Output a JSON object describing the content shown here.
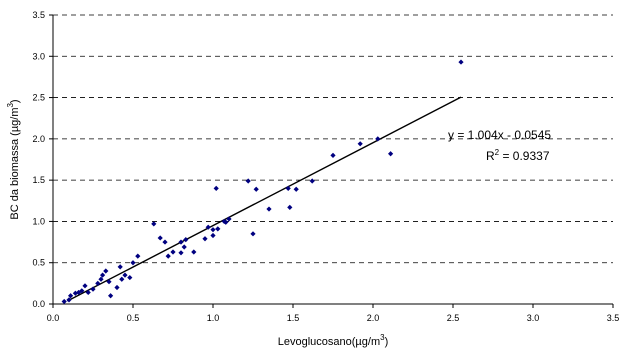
{
  "chart_data": {
    "type": "scatter",
    "xlabel": "Levoglucosano(µg/m",
    "xlabel_sup": "3",
    "xlabel_end": ")",
    "ylabel": "BC da biomassa (µg/m",
    "ylabel_sup": "3",
    "ylabel_end": ")",
    "xlim": [
      0,
      3.5
    ],
    "ylim": [
      0,
      3.5
    ],
    "x_ticks": [
      "0.0",
      "0.5",
      "1.0",
      "1.5",
      "2.0",
      "2.5",
      "3.0",
      "3.5"
    ],
    "y_ticks": [
      "0.0",
      "0.5",
      "1.0",
      "1.5",
      "2.0",
      "2.5",
      "3.0",
      "3.5"
    ],
    "grid": "horizontal-dashed",
    "marker_color": "#000080",
    "series": [
      {
        "points": [
          [
            0.07,
            0.03
          ],
          [
            0.1,
            0.05
          ],
          [
            0.11,
            0.1
          ],
          [
            0.14,
            0.13
          ],
          [
            0.16,
            0.14
          ],
          [
            0.18,
            0.16
          ],
          [
            0.2,
            0.22
          ],
          [
            0.22,
            0.14
          ],
          [
            0.25,
            0.18
          ],
          [
            0.28,
            0.25
          ],
          [
            0.3,
            0.3
          ],
          [
            0.31,
            0.35
          ],
          [
            0.33,
            0.4
          ],
          [
            0.35,
            0.27
          ],
          [
            0.36,
            0.1
          ],
          [
            0.4,
            0.2
          ],
          [
            0.42,
            0.45
          ],
          [
            0.43,
            0.3
          ],
          [
            0.45,
            0.35
          ],
          [
            0.48,
            0.32
          ],
          [
            0.5,
            0.5
          ],
          [
            0.53,
            0.58
          ],
          [
            0.63,
            0.97
          ],
          [
            0.67,
            0.8
          ],
          [
            0.7,
            0.75
          ],
          [
            0.72,
            0.58
          ],
          [
            0.75,
            0.63
          ],
          [
            0.8,
            0.62
          ],
          [
            0.8,
            0.75
          ],
          [
            0.82,
            0.69
          ],
          [
            0.83,
            0.78
          ],
          [
            0.88,
            0.63
          ],
          [
            0.95,
            0.79
          ],
          [
            0.97,
            0.93
          ],
          [
            1.0,
            0.83
          ],
          [
            1.0,
            0.9
          ],
          [
            1.02,
            1.4
          ],
          [
            1.03,
            0.91
          ],
          [
            1.07,
            1.0
          ],
          [
            1.08,
            0.99
          ],
          [
            1.1,
            1.03
          ],
          [
            1.22,
            1.49
          ],
          [
            1.25,
            0.85
          ],
          [
            1.27,
            1.39
          ],
          [
            1.35,
            1.15
          ],
          [
            1.47,
            1.4
          ],
          [
            1.48,
            1.17
          ],
          [
            1.52,
            1.39
          ],
          [
            1.62,
            1.49
          ],
          [
            1.75,
            1.8
          ],
          [
            1.92,
            1.94
          ],
          [
            2.03,
            2.0
          ],
          [
            2.11,
            1.82
          ],
          [
            2.55,
            2.93
          ]
        ]
      }
    ],
    "trendline": {
      "slope": 1.004,
      "intercept": -0.0545,
      "x_range": [
        0.09,
        2.55
      ]
    },
    "annotations": {
      "equation": "y = 1.004x - 0.0545",
      "r2_prefix": "R",
      "r2_sup": "2",
      "r2_suffix": " = 0.9337"
    }
  }
}
